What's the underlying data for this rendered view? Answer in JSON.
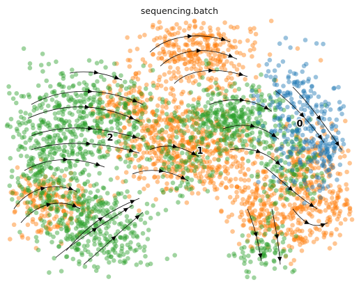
{
  "chart_data": {
    "type": "scatter",
    "title": "sequencing.batch",
    "xlabel": "",
    "ylabel": "",
    "grid": false,
    "legend": "on data",
    "overlay": "velocity stream lines with arrowheads",
    "series": [
      {
        "name": "0",
        "color": "#1f77b4"
      },
      {
        "name": "1",
        "color": "#ff7f0e"
      },
      {
        "name": "2",
        "color": "#2ca02c"
      }
    ]
  }
}
